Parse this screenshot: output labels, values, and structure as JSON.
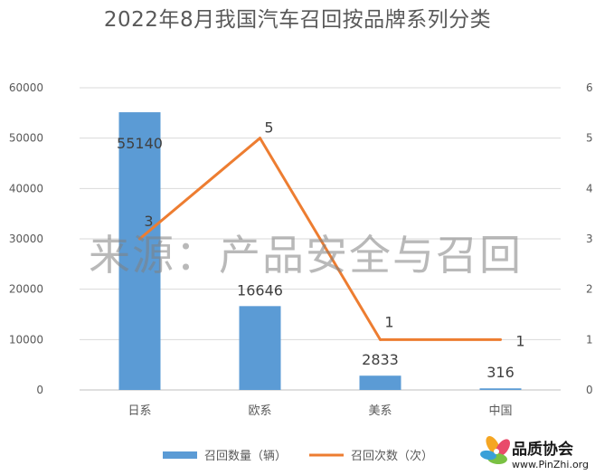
{
  "chart_data": {
    "type": "bar",
    "title": "2022年8月我国汽车召回按品牌系列分类",
    "categories": [
      "日系",
      "欧系",
      "美系",
      "中国"
    ],
    "series": [
      {
        "name": "召回数量（辆）",
        "type": "bar",
        "axis": "left",
        "color": "#5b9bd5",
        "values": [
          55140,
          16646,
          2833,
          316
        ]
      },
      {
        "name": "召回次数（次）",
        "type": "line",
        "axis": "right",
        "color": "#ed7d31",
        "values": [
          3,
          5,
          1,
          1
        ]
      }
    ],
    "y_left": {
      "min": 0,
      "max": 60000,
      "ticks": [
        0,
        10000,
        20000,
        30000,
        40000,
        50000,
        60000
      ]
    },
    "y_right": {
      "min": 0,
      "max": 6,
      "ticks": [
        0,
        1,
        2,
        3,
        4,
        5,
        6
      ]
    },
    "grid": true,
    "legend_position": "bottom"
  },
  "watermark": "来源：产品安全与召回",
  "logo": {
    "name": "品质协会",
    "url": "www.PinZhi.org"
  }
}
